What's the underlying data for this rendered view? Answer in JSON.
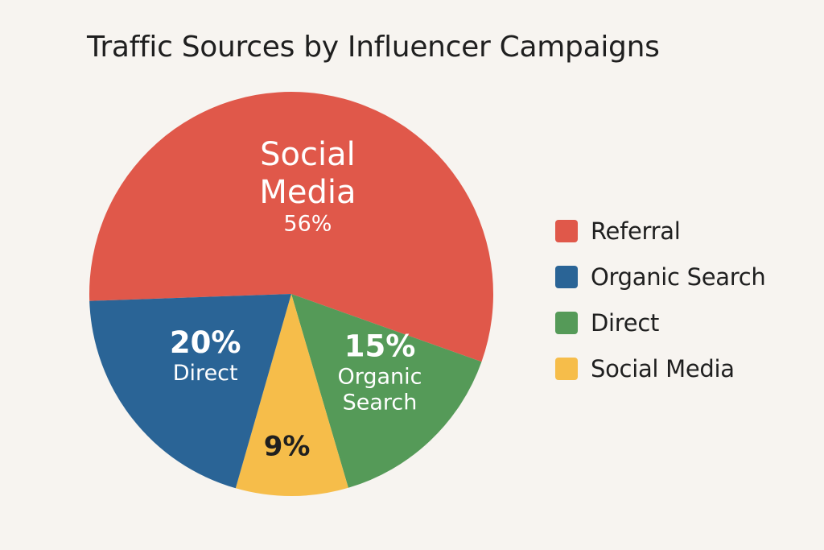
{
  "chart_data": {
    "type": "pie",
    "title": "Traffic Sources by Influencer Campaigns",
    "slices": [
      {
        "id": "social-media",
        "value": 56,
        "percent_label": "56%",
        "name_lines": [
          "Social",
          "Media"
        ],
        "color": "#e0584a"
      },
      {
        "id": "organic-search",
        "value": 15,
        "percent_label": "15%",
        "name_lines": [
          "Organic",
          "Search"
        ],
        "color": "#559a58"
      },
      {
        "id": "social-media-yellow",
        "value": 9,
        "percent_label": "9%",
        "name_lines": [],
        "color": "#f6bd4a"
      },
      {
        "id": "direct",
        "value": 20,
        "percent_label": "20%",
        "name_lines": [
          "Direct"
        ],
        "color": "#2a6496"
      }
    ],
    "legend": [
      {
        "label": "Referral",
        "color": "#e0584a"
      },
      {
        "label": "Organic Search",
        "color": "#2a6496"
      },
      {
        "label": "Direct",
        "color": "#559a58"
      },
      {
        "label": "Social Media",
        "color": "#f6bd4a"
      }
    ],
    "legend_position": "right"
  }
}
